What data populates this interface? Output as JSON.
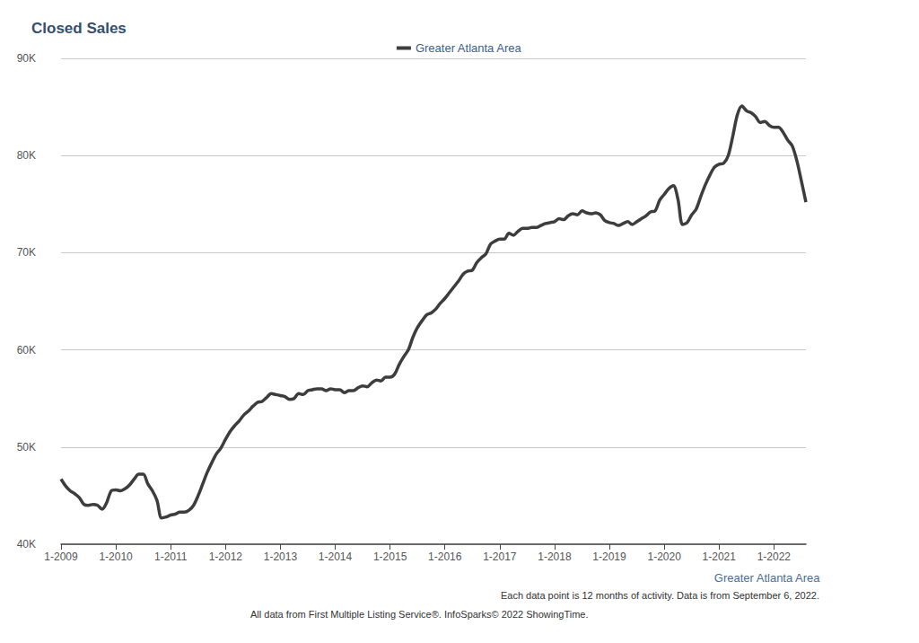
{
  "chart_data": {
    "type": "line",
    "title": "Closed Sales",
    "x_label": "Greater Atlanta Area",
    "annotations": [
      "Each data point is 12 months of activity. Data is from September 6, 2022.",
      "All data from First Multiple Listing Service®. InfoSparks© 2022 ShowingTime."
    ],
    "categories": [
      "1-2009",
      null,
      null,
      null,
      null,
      null,
      null,
      null,
      null,
      null,
      null,
      null,
      "1-2010",
      null,
      null,
      null,
      null,
      null,
      null,
      null,
      null,
      null,
      null,
      null,
      "1-2011",
      null,
      null,
      null,
      null,
      null,
      null,
      null,
      null,
      null,
      null,
      null,
      "1-2012",
      null,
      null,
      null,
      null,
      null,
      null,
      null,
      null,
      null,
      null,
      null,
      "1-2013",
      null,
      null,
      null,
      null,
      null,
      null,
      null,
      null,
      null,
      null,
      null,
      "1-2014",
      null,
      null,
      null,
      null,
      null,
      null,
      null,
      null,
      null,
      null,
      null,
      "1-2015",
      null,
      null,
      null,
      null,
      null,
      null,
      null,
      null,
      null,
      null,
      null,
      "1-2016",
      null,
      null,
      null,
      null,
      null,
      null,
      null,
      null,
      null,
      null,
      null,
      "1-2017",
      null,
      null,
      null,
      null,
      null,
      null,
      null,
      null,
      null,
      null,
      null,
      "1-2018",
      null,
      null,
      null,
      null,
      null,
      null,
      null,
      null,
      null,
      null,
      null,
      "1-2019",
      null,
      null,
      null,
      null,
      null,
      null,
      null,
      null,
      null,
      null,
      null,
      "1-2020",
      null,
      null,
      null,
      null,
      null,
      null,
      null,
      null,
      null,
      null,
      null,
      "1-2021",
      null,
      null,
      null,
      null,
      null,
      null,
      null,
      null,
      null,
      null,
      null,
      "1-2022",
      null,
      null,
      null,
      null,
      null,
      null,
      null
    ],
    "series": [
      {
        "name": "Greater Atlanta Area",
        "color": "#3d3d3d",
        "values": [
          46700,
          46000,
          45500,
          45200,
          44800,
          44100,
          44000,
          44100,
          44000,
          43600,
          44300,
          45500,
          45600,
          45500,
          45700,
          46100,
          46700,
          47200,
          47200,
          46200,
          45500,
          44500,
          42700,
          42800,
          43000,
          43100,
          43300,
          43300,
          43500,
          44000,
          45000,
          46200,
          47400,
          48400,
          49300,
          49900,
          50800,
          51600,
          52200,
          52700,
          53300,
          53700,
          54200,
          54600,
          54700,
          55100,
          55500,
          55400,
          55300,
          55200,
          54900,
          55000,
          55500,
          55400,
          55800,
          55900,
          56000,
          56000,
          55800,
          56000,
          55900,
          55900,
          55600,
          55800,
          55800,
          56100,
          56300,
          56200,
          56600,
          56900,
          56800,
          57200,
          57200,
          57500,
          58500,
          59300,
          60000,
          61300,
          62300,
          63000,
          63600,
          63800,
          64200,
          64800,
          65300,
          65900,
          66500,
          67100,
          67800,
          68100,
          68200,
          69000,
          69500,
          69900,
          70900,
          71200,
          71400,
          71400,
          72000,
          71800,
          72200,
          72500,
          72500,
          72600,
          72600,
          72800,
          73000,
          73100,
          73200,
          73500,
          73400,
          73800,
          74000,
          73900,
          74300,
          74100,
          74000,
          74100,
          73900,
          73300,
          73100,
          73000,
          72800,
          73000,
          73200,
          72900,
          73200,
          73500,
          73800,
          74200,
          74300,
          75400,
          76000,
          76600,
          76900,
          75500,
          72900,
          73100,
          73900,
          74500,
          75800,
          77000,
          78000,
          78800,
          79100,
          79200,
          80000,
          82000,
          84200,
          85100,
          84600,
          84400,
          84000,
          83400,
          83500,
          83100,
          82900,
          82900,
          82400,
          81600,
          81000,
          79500,
          77400,
          75200
        ]
      }
    ],
    "ylim": [
      40000,
      90000
    ],
    "yticks": [
      {
        "value": 40000,
        "label": "40K"
      },
      {
        "value": 50000,
        "label": "50K"
      },
      {
        "value": 60000,
        "label": "60K"
      },
      {
        "value": 70000,
        "label": "70K"
      },
      {
        "value": 80000,
        "label": "80K"
      },
      {
        "value": 90000,
        "label": "90K"
      }
    ],
    "grid": true,
    "legend": "top"
  }
}
